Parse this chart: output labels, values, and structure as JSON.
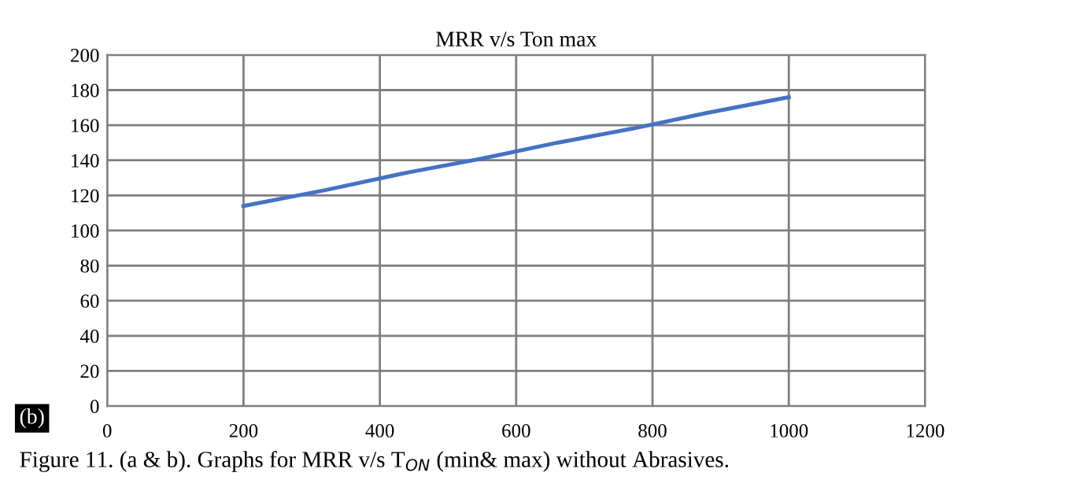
{
  "chart_data": {
    "type": "line",
    "title": "MRR v/s Ton max",
    "x": [
      200,
      320,
      440,
      550,
      660,
      770,
      880,
      1000
    ],
    "series": [
      {
        "color": "#4472c4",
        "values": [
          114,
          123,
          133,
          141,
          150,
          158,
          167,
          176
        ]
      }
    ],
    "xlim": [
      0,
      1200
    ],
    "xticks": [
      0,
      200,
      400,
      600,
      800,
      1000,
      1200
    ],
    "ylim": [
      0,
      200
    ],
    "yticks": [
      0,
      20,
      40,
      60,
      80,
      100,
      120,
      140,
      160,
      180,
      200
    ],
    "grid": true,
    "annotations": [
      "(b)",
      "Figure 11. (a & b). Graphs for MRR v/s T$_{ON}$ (min& max) without Abrasives."
    ]
  }
}
